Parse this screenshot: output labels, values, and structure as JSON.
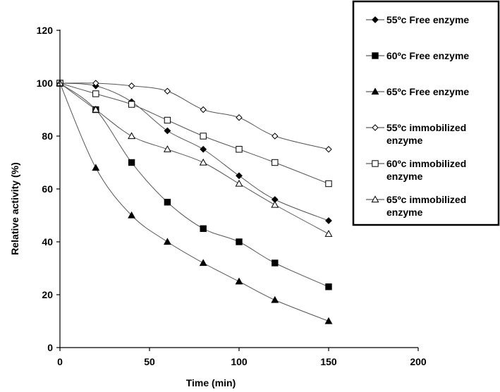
{
  "chart_data": {
    "type": "line",
    "xlabel": "Time (min)",
    "ylabel": "Relative activity (%)",
    "xlim": [
      0,
      200
    ],
    "ylim": [
      0,
      120
    ],
    "xticks": [
      0,
      50,
      100,
      150,
      200
    ],
    "yticks": [
      0,
      20,
      40,
      60,
      80,
      100,
      120
    ],
    "grid": false,
    "legend_position": "top-right",
    "x": [
      0,
      20,
      40,
      60,
      80,
      100,
      120,
      150
    ],
    "series": [
      {
        "name": "55ºc Free enzyme",
        "marker": "diamond-filled",
        "values": [
          100,
          99,
          93,
          82,
          75,
          65,
          56,
          48
        ]
      },
      {
        "name": "60ºc Free enzyme",
        "marker": "square-filled",
        "values": [
          100,
          90,
          70,
          55,
          45,
          40,
          32,
          23
        ]
      },
      {
        "name": "65ºc Free enzyme",
        "marker": "triangle-filled",
        "values": [
          100,
          68,
          50,
          40,
          32,
          25,
          18,
          10
        ]
      },
      {
        "name": "55ºc immobilized enzyme",
        "marker": "diamond-open",
        "values": [
          100,
          100,
          99,
          97,
          90,
          87,
          80,
          75
        ]
      },
      {
        "name": "60ºc immobilized enzyme",
        "marker": "square-open",
        "values": [
          100,
          96,
          92,
          86,
          80,
          75,
          70,
          62
        ]
      },
      {
        "name": "65ºc immobilized enzyme",
        "marker": "triangle-open",
        "values": [
          100,
          90,
          80,
          75,
          70,
          62,
          54,
          43
        ]
      }
    ]
  }
}
